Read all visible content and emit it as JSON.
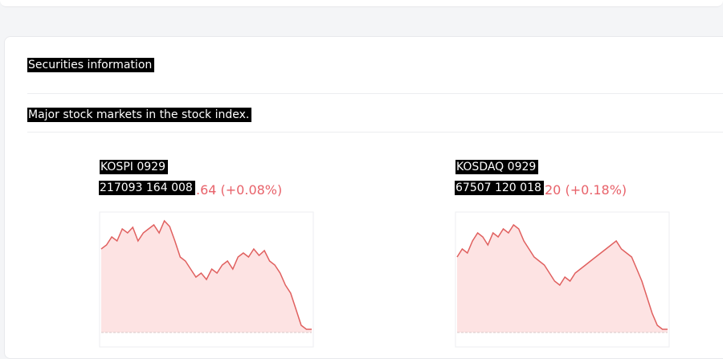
{
  "header": {
    "title": "Securities information",
    "subtitle": "Major stock markets in the stock index."
  },
  "chart_data": [
    {
      "type": "area",
      "title": "KOSPI 0929",
      "subtitle": "217093 164 008",
      "change": ".64  (+0.08%)",
      "color": "#e0605f",
      "values": [
        104,
        109,
        119,
        114,
        129,
        124,
        131,
        114,
        124,
        129,
        134,
        124,
        139,
        132,
        114,
        94,
        89,
        79,
        69,
        74,
        66,
        79,
        74,
        84,
        89,
        79,
        94,
        99,
        94,
        104,
        96,
        102,
        89,
        84,
        74,
        59,
        49,
        29,
        9,
        4,
        4
      ],
      "ylim": [
        0,
        150
      ]
    },
    {
      "type": "area",
      "title": "KOSDAQ 0929",
      "subtitle": "67507 120 018",
      "change": "20  (+0.18%)",
      "color": "#e0605f",
      "values": [
        94,
        104,
        99,
        114,
        124,
        119,
        109,
        124,
        119,
        129,
        124,
        134,
        129,
        114,
        104,
        94,
        89,
        84,
        74,
        64,
        59,
        69,
        64,
        74,
        79,
        84,
        89,
        94,
        99,
        104,
        109,
        114,
        104,
        99,
        94,
        79,
        64,
        44,
        24,
        9,
        4,
        4
      ],
      "ylim": [
        0,
        150
      ]
    }
  ]
}
